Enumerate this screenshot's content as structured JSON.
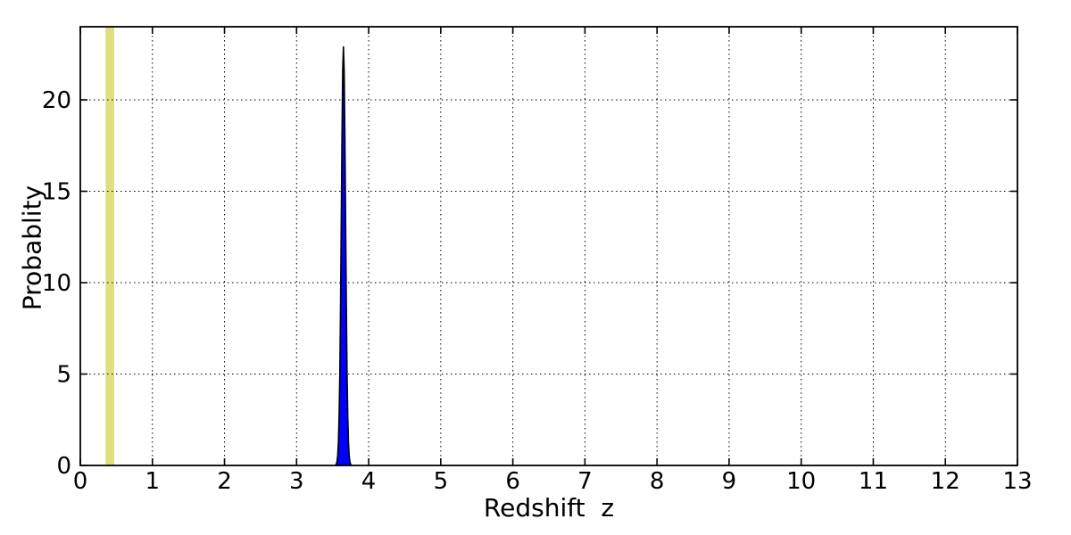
{
  "chart_data": {
    "type": "area",
    "title": "",
    "xlabel": "Redshift  z",
    "ylabel": "Probablity",
    "xlim": [
      0,
      13
    ],
    "ylim": [
      0,
      24
    ],
    "xticks": [
      0,
      1,
      2,
      3,
      4,
      5,
      6,
      7,
      8,
      9,
      10,
      11,
      12,
      13
    ],
    "xtick_labels": [
      "0",
      "1",
      "2",
      "3",
      "4",
      "5",
      "6",
      "7",
      "8",
      "9",
      "10",
      "11",
      "12",
      "13"
    ],
    "yticks": [
      0,
      5,
      10,
      15,
      20
    ],
    "ytick_labels": [
      "0",
      "5",
      "10",
      "15",
      "20"
    ],
    "grid": true,
    "grid_style": "dotted",
    "legend": "none",
    "colors": {
      "background": "#ffffff",
      "spine": "#000000",
      "grid": "#000000",
      "tick_label": "#000000"
    },
    "bands": [
      {
        "name": "reference-redshift-band",
        "x0": 0.35,
        "x1": 0.47,
        "color": "#bfbf00",
        "alpha": 0.5
      }
    ],
    "series": [
      {
        "name": "redshift-probability-density",
        "fill": "#0000ff",
        "line_color": "#000000",
        "peak_z": 3.65,
        "peak_value": 22.9,
        "points": [
          [
            3.53,
            0.0
          ],
          [
            3.54,
            0.01
          ],
          [
            3.55,
            0.06
          ],
          [
            3.56,
            0.19
          ],
          [
            3.57,
            0.51
          ],
          [
            3.58,
            1.25
          ],
          [
            3.59,
            2.7
          ],
          [
            3.6,
            5.0
          ],
          [
            3.61,
            8.8
          ],
          [
            3.62,
            13.4
          ],
          [
            3.63,
            18.0
          ],
          [
            3.64,
            21.6
          ],
          [
            3.65,
            22.9
          ],
          [
            3.66,
            21.6
          ],
          [
            3.67,
            18.0
          ],
          [
            3.68,
            13.4
          ],
          [
            3.69,
            8.8
          ],
          [
            3.7,
            5.0
          ],
          [
            3.71,
            2.7
          ],
          [
            3.72,
            1.25
          ],
          [
            3.73,
            0.51
          ],
          [
            3.74,
            0.19
          ],
          [
            3.75,
            0.06
          ],
          [
            3.76,
            0.01
          ],
          [
            3.77,
            0.0
          ]
        ]
      }
    ]
  }
}
